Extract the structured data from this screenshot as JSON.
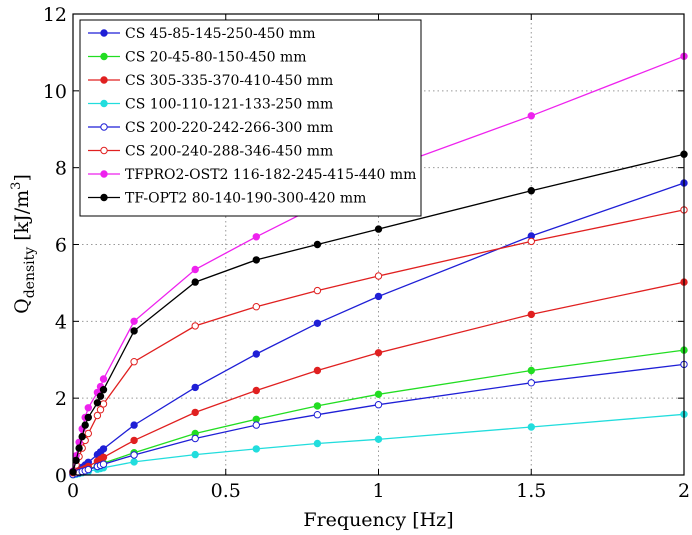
{
  "chart_data": {
    "type": "line",
    "xlabel": "Frequency [Hz]",
    "ylabel_main": "Q",
    "ylabel_sub": "density",
    "ylabel_unit_open": " [kJ/m",
    "ylabel_unit_sup": "3",
    "ylabel_unit_close": "]",
    "xlim": [
      0,
      2
    ],
    "ylim": [
      0,
      12
    ],
    "xticks": [
      0,
      0.5,
      1,
      1.5,
      2
    ],
    "xtick_labels": [
      "0",
      "0.5",
      "1",
      "1.5",
      "2"
    ],
    "yticks": [
      0,
      2,
      4,
      6,
      8,
      10,
      12
    ],
    "ytick_labels": [
      "0",
      "2",
      "4",
      "6",
      "8",
      "10",
      "12"
    ],
    "grid": true,
    "legend_position": "top-left",
    "x": [
      0,
      0.01,
      0.02,
      0.03,
      0.04,
      0.05,
      0.08,
      0.09,
      0.1,
      0.2,
      0.4,
      0.6,
      0.8,
      1,
      1.5,
      2
    ],
    "series": [
      {
        "name": "CS 45-85-145-250-450 mm",
        "color": "#1f1fd6",
        "filled": true,
        "values": [
          0.03,
          0.08,
          0.14,
          0.2,
          0.26,
          0.33,
          0.53,
          0.6,
          0.68,
          1.3,
          2.28,
          3.15,
          3.95,
          4.65,
          6.22,
          7.6
        ]
      },
      {
        "name": "CS 20-45-80-150-450 mm",
        "color": "#22dd22",
        "filled": true,
        "values": [
          0.01,
          0.04,
          0.07,
          0.09,
          0.12,
          0.15,
          0.24,
          0.27,
          0.31,
          0.58,
          1.08,
          1.45,
          1.8,
          2.1,
          2.72,
          3.25
        ]
      },
      {
        "name": "CS 305-335-370-410-450 mm",
        "color": "#e02020",
        "filled": true,
        "values": [
          0.02,
          0.05,
          0.09,
          0.13,
          0.17,
          0.22,
          0.36,
          0.41,
          0.46,
          0.9,
          1.63,
          2.2,
          2.72,
          3.18,
          4.18,
          5.02
        ]
      },
      {
        "name": "CS 100-110-121-133-250 mm",
        "color": "#22dddd",
        "filled": true,
        "values": [
          0.01,
          0.02,
          0.04,
          0.06,
          0.08,
          0.09,
          0.15,
          0.17,
          0.19,
          0.34,
          0.53,
          0.68,
          0.82,
          0.93,
          1.25,
          1.58
        ]
      },
      {
        "name": "CS 200-220-242-266-300 mm",
        "color": "#1f1fd6",
        "filled": false,
        "values": [
          0.01,
          0.04,
          0.06,
          0.09,
          0.11,
          0.14,
          0.22,
          0.25,
          0.28,
          0.52,
          0.95,
          1.3,
          1.57,
          1.83,
          2.4,
          2.88
        ]
      },
      {
        "name": "CS 200-240-288-346-450 mm",
        "color": "#e02020",
        "filled": false,
        "values": [
          0.06,
          0.26,
          0.48,
          0.7,
          0.9,
          1.08,
          1.55,
          1.7,
          1.85,
          2.95,
          3.88,
          4.38,
          4.8,
          5.18,
          6.08,
          6.9
        ]
      },
      {
        "name": "TFPRO2-OST2 116-182-245-415-440 mm",
        "color": "#ee22ee",
        "filled": true,
        "values": [
          0.1,
          0.5,
          0.85,
          1.2,
          1.5,
          1.75,
          2.15,
          2.3,
          2.5,
          4.0,
          5.35,
          6.2,
          7.0,
          7.9,
          9.35,
          10.9
        ]
      },
      {
        "name": "TF-OPT2 80-140-190-300-420 mm",
        "color": "#000000",
        "filled": true,
        "values": [
          0.08,
          0.38,
          0.7,
          1.0,
          1.3,
          1.5,
          1.88,
          2.05,
          2.22,
          3.75,
          5.02,
          5.6,
          6.0,
          6.4,
          7.4,
          8.35
        ]
      }
    ]
  }
}
